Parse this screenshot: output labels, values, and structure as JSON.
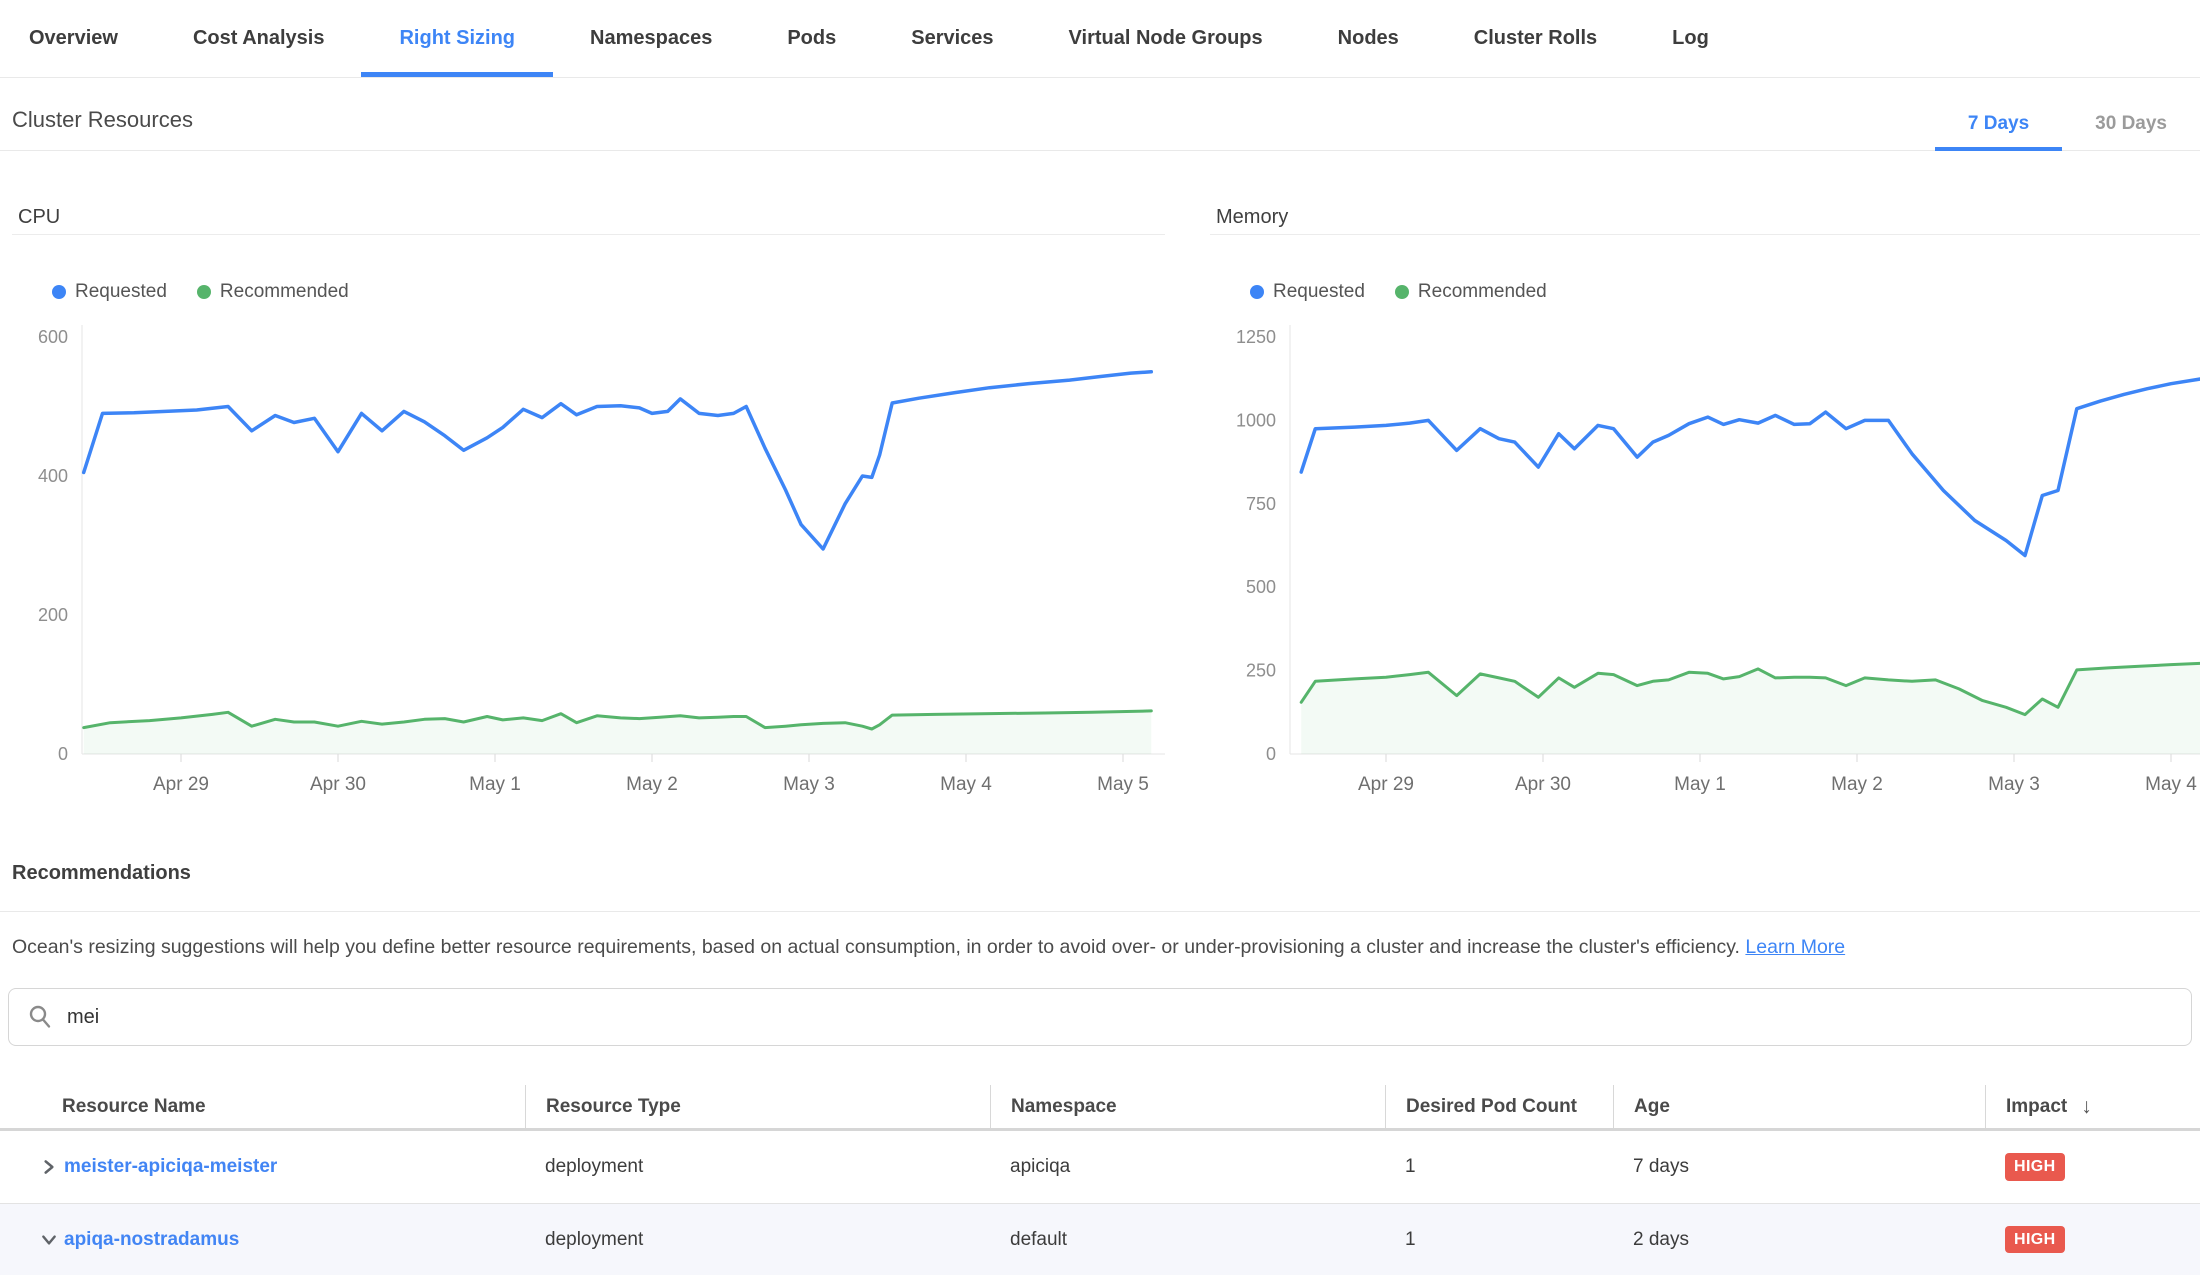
{
  "tabs": {
    "items": [
      {
        "label": "Overview",
        "active": false
      },
      {
        "label": "Cost Analysis",
        "active": false
      },
      {
        "label": "Right Sizing",
        "active": true
      },
      {
        "label": "Namespaces",
        "active": false
      },
      {
        "label": "Pods",
        "active": false
      },
      {
        "label": "Services",
        "active": false
      },
      {
        "label": "Virtual Node Groups",
        "active": false
      },
      {
        "label": "Nodes",
        "active": false
      },
      {
        "label": "Cluster Rolls",
        "active": false
      },
      {
        "label": "Log",
        "active": false
      }
    ]
  },
  "section": {
    "title": "Cluster Resources",
    "periods": [
      {
        "label": "7 Days",
        "active": true
      },
      {
        "label": "30 Days",
        "active": false
      }
    ]
  },
  "chart_data": [
    {
      "id": "cpu",
      "type": "line",
      "title": "CPU",
      "xlabel": "",
      "ylabel": "",
      "ylim": [
        0,
        600
      ],
      "y_ticks": [
        0,
        200,
        400,
        600
      ],
      "x_tick_labels": [
        "Apr 29",
        "Apr 30",
        "May 1",
        "May 2",
        "May 3",
        "May 4",
        "May 5"
      ],
      "x_range_days": [
        -0.62,
        6.22
      ],
      "grid": false,
      "legend_position": "top-left",
      "series": [
        {
          "name": "Requested",
          "color": "#3d85f6",
          "fill": false,
          "points": [
            [
              -0.62,
              405
            ],
            [
              -0.5,
              490
            ],
            [
              -0.3,
              491
            ],
            [
              -0.1,
              493
            ],
            [
              0.1,
              495
            ],
            [
              0.3,
              500
            ],
            [
              0.45,
              465
            ],
            [
              0.6,
              487
            ],
            [
              0.72,
              477
            ],
            [
              0.85,
              483
            ],
            [
              1.0,
              435
            ],
            [
              1.15,
              490
            ],
            [
              1.28,
              465
            ],
            [
              1.42,
              493
            ],
            [
              1.55,
              478
            ],
            [
              1.68,
              458
            ],
            [
              1.8,
              437
            ],
            [
              1.95,
              455
            ],
            [
              2.05,
              470
            ],
            [
              2.18,
              496
            ],
            [
              2.3,
              484
            ],
            [
              2.42,
              504
            ],
            [
              2.52,
              488
            ],
            [
              2.65,
              500
            ],
            [
              2.8,
              501
            ],
            [
              2.92,
              498
            ],
            [
              3.0,
              490
            ],
            [
              3.1,
              493
            ],
            [
              3.18,
              511
            ],
            [
              3.3,
              490
            ],
            [
              3.42,
              487
            ],
            [
              3.52,
              490
            ],
            [
              3.6,
              500
            ],
            [
              3.72,
              440
            ],
            [
              3.85,
              380
            ],
            [
              3.95,
              330
            ],
            [
              4.09,
              295
            ],
            [
              4.23,
              360
            ],
            [
              4.34,
              400
            ],
            [
              4.4,
              398
            ],
            [
              4.45,
              430
            ],
            [
              4.53,
              505
            ],
            [
              4.7,
              512
            ],
            [
              4.93,
              520
            ],
            [
              5.15,
              527
            ],
            [
              5.4,
              533
            ],
            [
              5.66,
              538
            ],
            [
              5.85,
              543
            ],
            [
              6.05,
              548
            ],
            [
              6.18,
              550
            ]
          ]
        },
        {
          "name": "Recommended",
          "color": "#56b46b",
          "fill": true,
          "points": [
            [
              -0.62,
              38
            ],
            [
              -0.45,
              45
            ],
            [
              -0.2,
              48
            ],
            [
              0.0,
              52
            ],
            [
              0.2,
              57
            ],
            [
              0.3,
              60
            ],
            [
              0.45,
              40
            ],
            [
              0.6,
              50
            ],
            [
              0.72,
              46
            ],
            [
              0.85,
              46
            ],
            [
              1.0,
              40
            ],
            [
              1.15,
              47
            ],
            [
              1.28,
              43
            ],
            [
              1.42,
              46
            ],
            [
              1.55,
              50
            ],
            [
              1.68,
              51
            ],
            [
              1.8,
              46
            ],
            [
              1.95,
              54
            ],
            [
              2.05,
              49
            ],
            [
              2.18,
              52
            ],
            [
              2.3,
              48
            ],
            [
              2.42,
              58
            ],
            [
              2.52,
              45
            ],
            [
              2.65,
              55
            ],
            [
              2.8,
              52
            ],
            [
              2.92,
              51
            ],
            [
              3.05,
              53
            ],
            [
              3.18,
              55
            ],
            [
              3.3,
              52
            ],
            [
              3.42,
              53
            ],
            [
              3.52,
              54
            ],
            [
              3.6,
              54
            ],
            [
              3.72,
              38
            ],
            [
              3.85,
              40
            ],
            [
              3.95,
              42
            ],
            [
              4.09,
              44
            ],
            [
              4.23,
              45
            ],
            [
              4.34,
              40
            ],
            [
              4.4,
              36
            ],
            [
              4.45,
              42
            ],
            [
              4.53,
              56
            ],
            [
              4.8,
              57
            ],
            [
              5.1,
              58
            ],
            [
              5.5,
              59
            ],
            [
              5.8,
              60
            ],
            [
              6.18,
              62
            ]
          ]
        }
      ]
    },
    {
      "id": "memory",
      "type": "line",
      "title": "Memory",
      "xlabel": "",
      "ylabel": "",
      "ylim": [
        0,
        1250
      ],
      "y_ticks": [
        0,
        250,
        500,
        750,
        1000,
        1250
      ],
      "x_tick_labels": [
        "Apr 29",
        "Apr 30",
        "May 1",
        "May 2",
        "May 3",
        "May 4"
      ],
      "x_range_days": [
        -0.54,
        5.2
      ],
      "grid": false,
      "legend_position": "top-left",
      "series": [
        {
          "name": "Requested",
          "color": "#3d85f6",
          "fill": false,
          "points": [
            [
              -0.54,
              845
            ],
            [
              -0.45,
              975
            ],
            [
              -0.2,
              980
            ],
            [
              0,
              985
            ],
            [
              0.15,
              992
            ],
            [
              0.27,
              1000
            ],
            [
              0.45,
              910
            ],
            [
              0.6,
              975
            ],
            [
              0.72,
              945
            ],
            [
              0.82,
              935
            ],
            [
              0.97,
              860
            ],
            [
              1.1,
              960
            ],
            [
              1.2,
              915
            ],
            [
              1.35,
              985
            ],
            [
              1.45,
              975
            ],
            [
              1.6,
              890
            ],
            [
              1.7,
              935
            ],
            [
              1.8,
              955
            ],
            [
              1.93,
              990
            ],
            [
              2.05,
              1010
            ],
            [
              2.15,
              988
            ],
            [
              2.25,
              1002
            ],
            [
              2.37,
              992
            ],
            [
              2.48,
              1015
            ],
            [
              2.6,
              988
            ],
            [
              2.7,
              990
            ],
            [
              2.8,
              1025
            ],
            [
              2.93,
              975
            ],
            [
              3.05,
              1000
            ],
            [
              3.2,
              1000
            ],
            [
              3.35,
              900
            ],
            [
              3.55,
              790
            ],
            [
              3.75,
              700
            ],
            [
              3.95,
              640
            ],
            [
              4.07,
              595
            ],
            [
              4.18,
              775
            ],
            [
              4.28,
              790
            ],
            [
              4.4,
              1035
            ],
            [
              4.55,
              1058
            ],
            [
              4.7,
              1078
            ],
            [
              4.85,
              1095
            ],
            [
              5.0,
              1110
            ],
            [
              5.2,
              1125
            ]
          ]
        },
        {
          "name": "Recommended",
          "color": "#56b46b",
          "fill": true,
          "points": [
            [
              -0.54,
              155
            ],
            [
              -0.45,
              218
            ],
            [
              -0.2,
              225
            ],
            [
              0,
              230
            ],
            [
              0.15,
              238
            ],
            [
              0.27,
              245
            ],
            [
              0.45,
              175
            ],
            [
              0.6,
              240
            ],
            [
              0.72,
              228
            ],
            [
              0.82,
              218
            ],
            [
              0.97,
              170
            ],
            [
              1.1,
              228
            ],
            [
              1.2,
              200
            ],
            [
              1.35,
              242
            ],
            [
              1.45,
              238
            ],
            [
              1.6,
              205
            ],
            [
              1.7,
              218
            ],
            [
              1.8,
              222
            ],
            [
              1.93,
              245
            ],
            [
              2.05,
              242
            ],
            [
              2.15,
              225
            ],
            [
              2.25,
              232
            ],
            [
              2.37,
              255
            ],
            [
              2.48,
              228
            ],
            [
              2.6,
              230
            ],
            [
              2.7,
              230
            ],
            [
              2.8,
              228
            ],
            [
              2.93,
              205
            ],
            [
              3.05,
              228
            ],
            [
              3.2,
              222
            ],
            [
              3.35,
              218
            ],
            [
              3.5,
              222
            ],
            [
              3.65,
              195
            ],
            [
              3.8,
              160
            ],
            [
              3.95,
              140
            ],
            [
              4.07,
              118
            ],
            [
              4.18,
              165
            ],
            [
              4.28,
              140
            ],
            [
              4.4,
              252
            ],
            [
              4.6,
              258
            ],
            [
              4.8,
              263
            ],
            [
              5.0,
              268
            ],
            [
              5.2,
              272
            ]
          ]
        }
      ]
    }
  ],
  "recommendations": {
    "title": "Recommendations",
    "description": "Ocean's resizing suggestions will help you define better resource requirements, based on actual consumption, in order to avoid over- or under-provisioning a cluster and increase the cluster's efficiency.",
    "learn_more_label": "Learn More"
  },
  "search": {
    "value": "mei",
    "placeholder": ""
  },
  "table": {
    "columns": [
      "Resource Name",
      "Resource Type",
      "Namespace",
      "Desired Pod Count",
      "Age",
      "Impact"
    ],
    "sort": {
      "column": "Impact",
      "direction": "desc",
      "icon": "sort-descending-arrow"
    },
    "rows": [
      {
        "expanded": false,
        "name": "meister-apiciqa-meister",
        "type": "deployment",
        "namespace": "apiciqa",
        "desired_pod_count": "1",
        "age": "7 days",
        "impact": "HIGH"
      },
      {
        "expanded": true,
        "name": "apiqa-nostradamus",
        "type": "deployment",
        "namespace": "default",
        "desired_pod_count": "1",
        "age": "2 days",
        "impact": "HIGH"
      }
    ]
  },
  "colors": {
    "accent_blue": "#3d85f6",
    "series_green": "#56b46b",
    "badge_red": "#e9594e",
    "expanded_row_bg": "#f6f7fc"
  }
}
